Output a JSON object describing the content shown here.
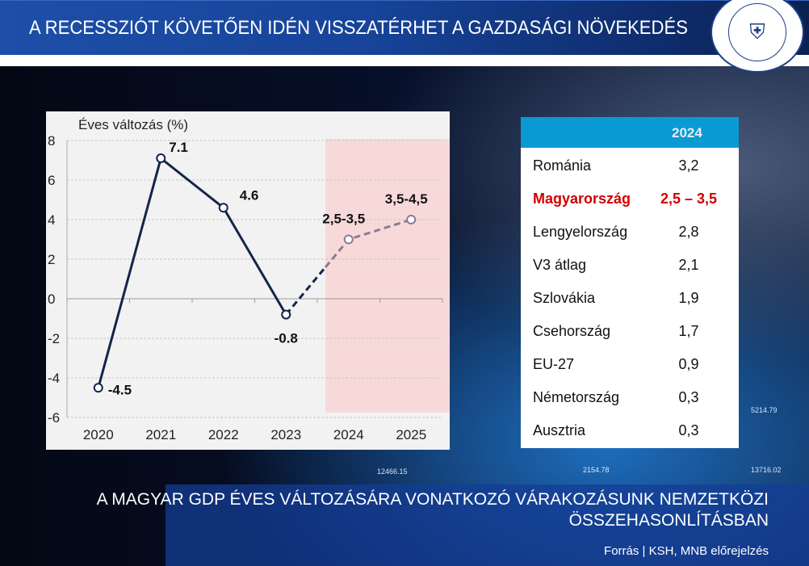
{
  "header": {
    "title": "A RECESSZIÓT KÖVETŐEN IDÉN VISSZATÉRHET A GAZDASÁGI NÖVEKEDÉS",
    "logo_text": "MAGYAR NEMZETI BANK"
  },
  "background": {
    "labels": [
      "12466.15",
      "2154.78",
      "13716.02",
      "5214.79"
    ]
  },
  "chart_data": {
    "type": "line",
    "ylabel": "Éves változás (%)",
    "categories": [
      "2020",
      "2021",
      "2022",
      "2023",
      "2024",
      "2025"
    ],
    "values": [
      -4.5,
      7.1,
      4.6,
      -0.8,
      3.0,
      4.0
    ],
    "data_labels": [
      "-4.5",
      "7.1",
      "4.6",
      "-0.8",
      "2,5-3,5",
      "3,5-4,5"
    ],
    "forecast_from": "2024",
    "ylim": [
      -6,
      8
    ],
    "yticks": [
      -6,
      -4,
      -2,
      0,
      2,
      4,
      6,
      8
    ],
    "ytick_labels": [
      "-6",
      "-4",
      "-2",
      "0",
      "2",
      "4",
      "6",
      "8"
    ],
    "grid": true,
    "colors": {
      "actual": "#14254a",
      "forecast": "#8c7a92",
      "forecast_shade": "#f8d9d9"
    }
  },
  "table": {
    "header": "2024",
    "rows": [
      {
        "country": "Románia",
        "value": "3,2"
      },
      {
        "country": "Magyarország",
        "value": "2,5 – 3,5",
        "highlight": true
      },
      {
        "country": "Lengyelország",
        "value": "2,8"
      },
      {
        "country": "V3 átlag",
        "value": "2,1"
      },
      {
        "country": "Szlovákia",
        "value": "1,9"
      },
      {
        "country": "Csehország",
        "value": "1,7"
      },
      {
        "country": "EU-27",
        "value": "0,9"
      },
      {
        "country": "Németország",
        "value": "0,3"
      },
      {
        "country": "Ausztria",
        "value": "0,3"
      }
    ],
    "highlight_color": "#d10000",
    "header_color": "#0a9ad3"
  },
  "footer": {
    "subtitle_line1": "A MAGYAR GDP ÉVES VÁLTOZÁSÁRA VONATKOZÓ VÁRAKOZÁSUNK NEMZETKÖZI",
    "subtitle_line2": "ÖSSZEHASONLÍTÁSBAN",
    "source": "Forrás | KSH, MNB előrejelzés"
  }
}
